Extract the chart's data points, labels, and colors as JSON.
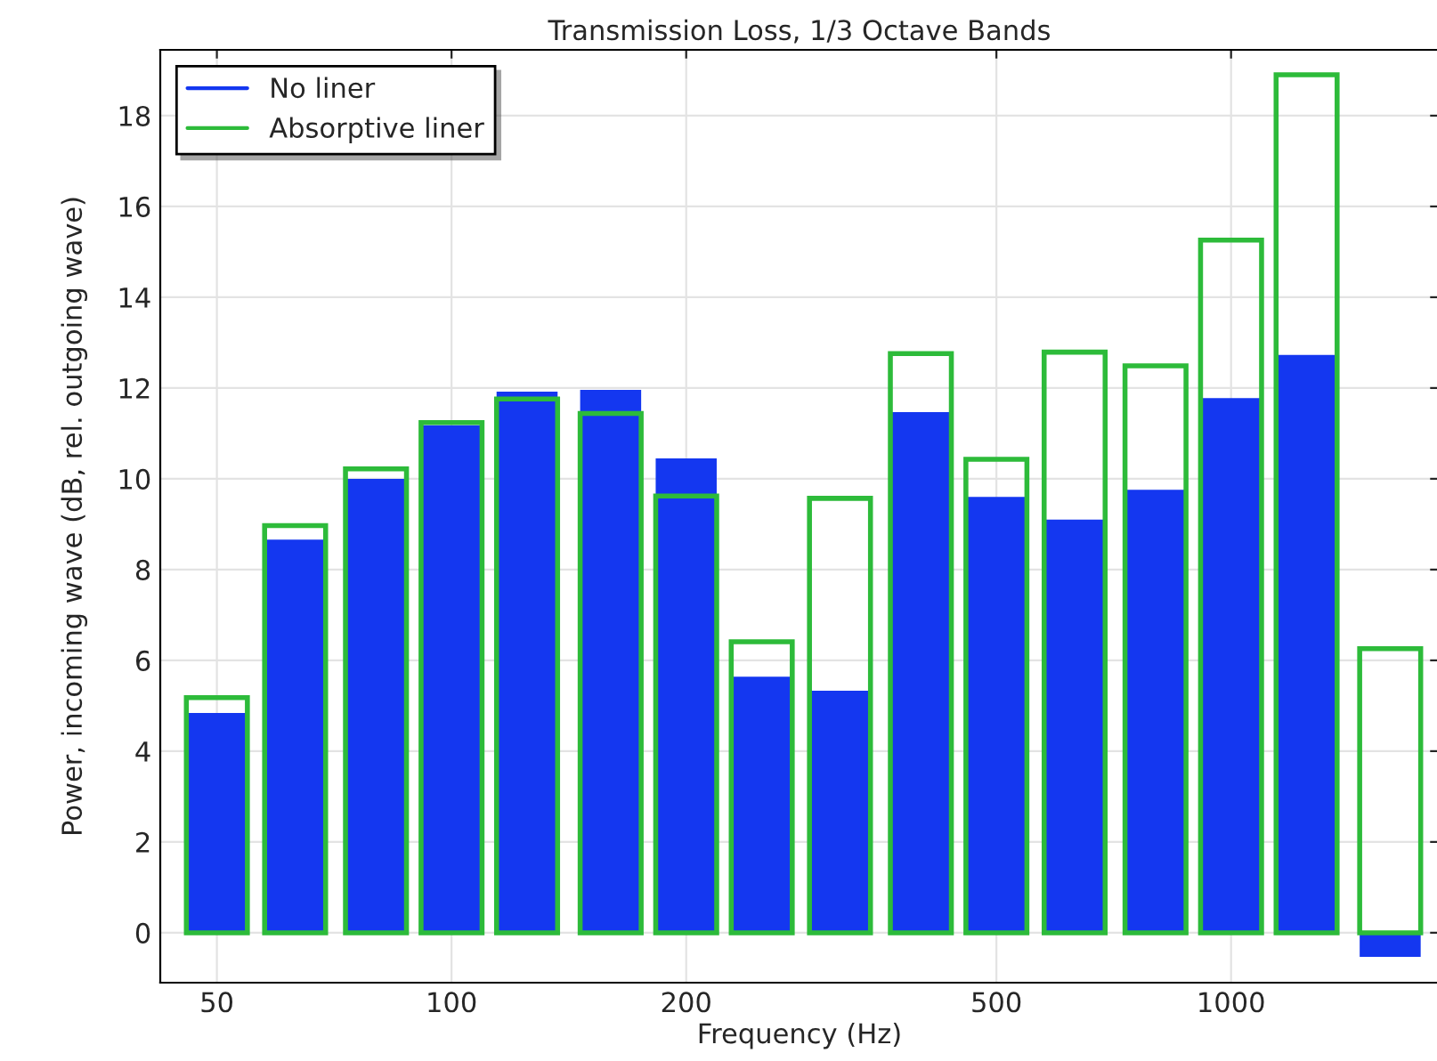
{
  "chart_data": {
    "type": "bar",
    "title": "Transmission Loss, 1/3 Octave Bands",
    "xlabel": "Frequency (Hz)",
    "ylabel": "Power, incoming wave (dB, rel. outgoing wave)",
    "x": [
      50,
      63,
      80,
      100,
      125,
      160,
      200,
      250,
      315,
      400,
      500,
      630,
      800,
      1000,
      1250,
      1600
    ],
    "series": [
      {
        "name": "No liner",
        "color": "#1437f0",
        "values": [
          4.84,
          8.66,
          10.0,
          11.18,
          11.92,
          11.96,
          10.45,
          5.64,
          5.33,
          11.47,
          9.6,
          9.1,
          9.76,
          11.78,
          12.73,
          -0.53
        ]
      },
      {
        "name": "Absorptive liner",
        "color": "#2dbb3a",
        "values": [
          5.18,
          8.97,
          10.22,
          11.24,
          11.76,
          11.44,
          9.62,
          6.41,
          9.57,
          12.76,
          10.43,
          12.79,
          12.49,
          15.26,
          18.9,
          6.26
        ]
      }
    ],
    "log": "x",
    "xlim": [
      42.3,
      1847
    ],
    "xticks": [
      50,
      100,
      200,
      500,
      1000
    ],
    "ylim": [
      -1.1,
      19.45
    ],
    "yticks": [
      0,
      2,
      4,
      6,
      8,
      10,
      12,
      14,
      16,
      18
    ],
    "grid": true,
    "legend": "top left"
  }
}
